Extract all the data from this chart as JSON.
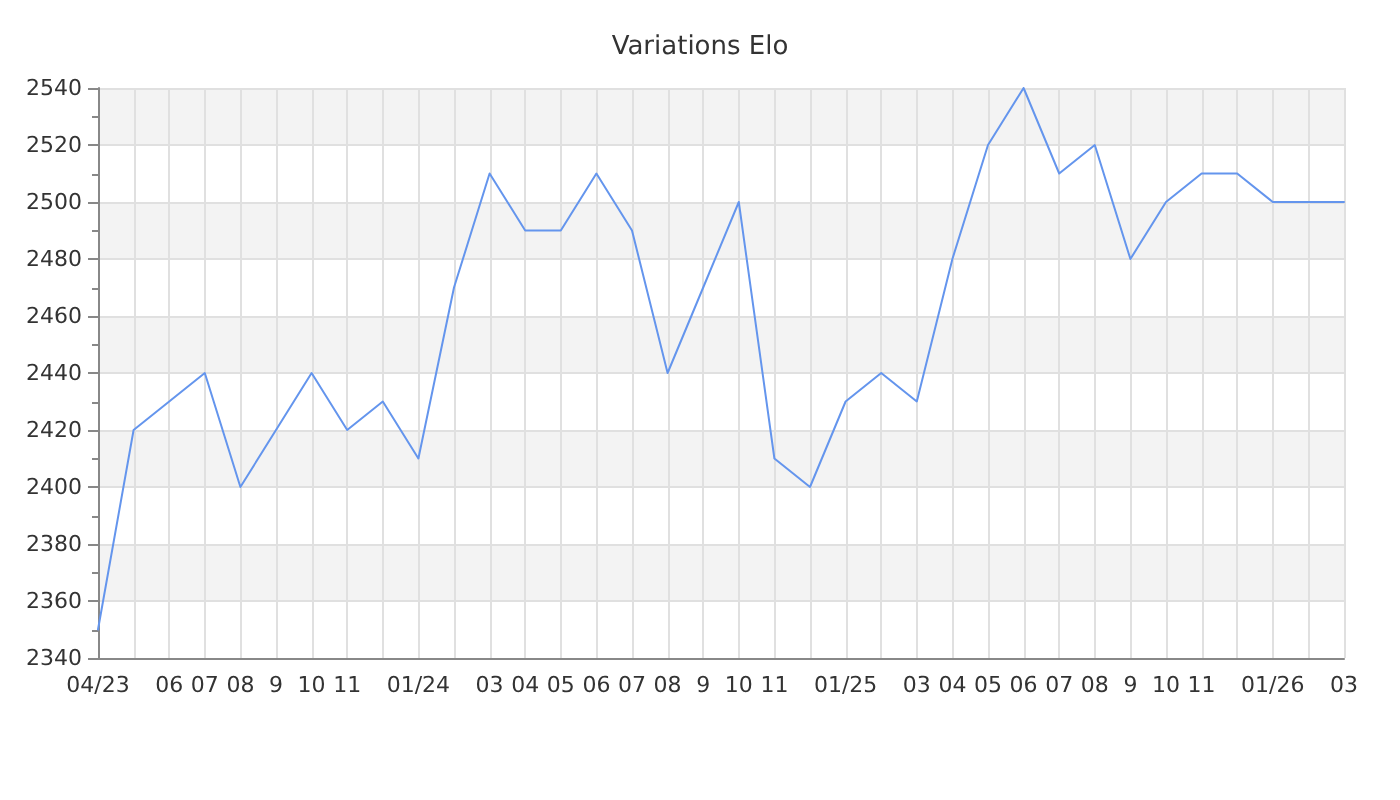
{
  "chart_data": {
    "type": "line",
    "title": "Variations Elo",
    "categories": [
      "04/23",
      null,
      "06",
      "07",
      "08",
      "9",
      "10",
      "11",
      null,
      "01/24",
      null,
      "03",
      "04",
      "05",
      "06",
      "07",
      "08",
      "9",
      "10",
      "11",
      null,
      "01/25",
      null,
      "03",
      "04",
      "05",
      "06",
      "07",
      "08",
      "9",
      "10",
      "11",
      null,
      "01/26",
      null,
      "03"
    ],
    "series": [
      {
        "color": "#6495ed",
        "values": [
          2350,
          2420,
          2430,
          2440,
          2400,
          2420,
          2440,
          2420,
          2430,
          2410,
          2470,
          2510,
          2490,
          2490,
          2510,
          2490,
          2440,
          2470,
          2500,
          2410,
          2400,
          2430,
          2440,
          2430,
          2480,
          2520,
          2540,
          2510,
          2520,
          2480,
          2500,
          2510,
          2510,
          2500,
          2500,
          2500
        ]
      }
    ],
    "ylim": [
      2340,
      2540
    ],
    "yticks": [
      2340,
      2360,
      2380,
      2400,
      2420,
      2440,
      2460,
      2480,
      2500,
      2520,
      2540
    ],
    "grid": true,
    "marker": "none",
    "line_style": "solid"
  }
}
